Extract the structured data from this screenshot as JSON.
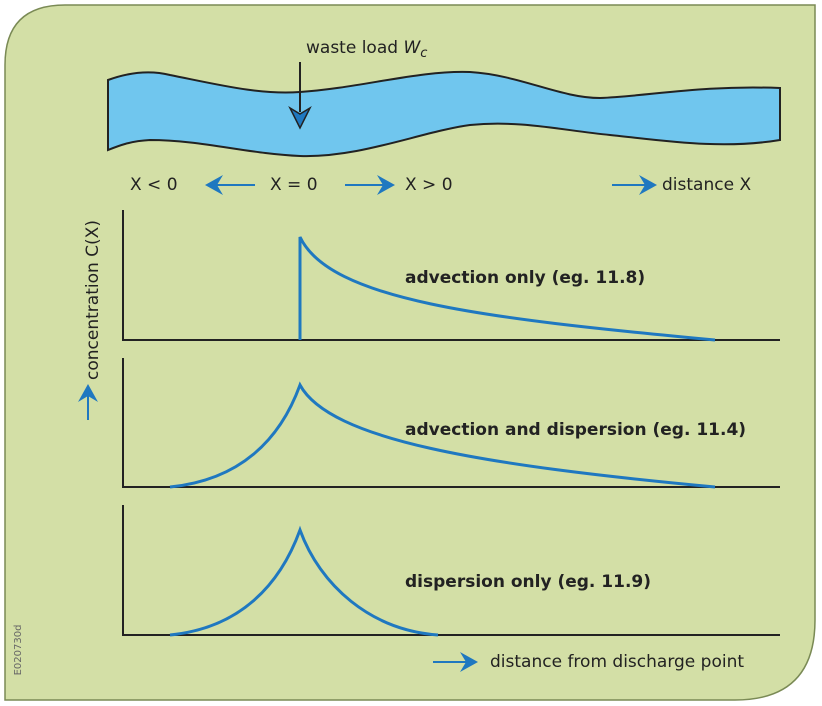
{
  "river": {
    "waste_load": {
      "text": "waste load",
      "symbol": "W",
      "subscript": "c"
    }
  },
  "axis_labels": {
    "x_negative": "X < 0",
    "x_zero": "X = 0",
    "x_positive": "X > 0",
    "distance": "distance X"
  },
  "y_label": "concentration C(X)",
  "panels": [
    {
      "label": "advection only (eg. 11.8)"
    },
    {
      "label": "advection and dispersion (eg. 11.4)"
    },
    {
      "label": "dispersion only (eg. 11.9)"
    }
  ],
  "x_label": "distance from discharge point",
  "figure_id": "E020730d"
}
